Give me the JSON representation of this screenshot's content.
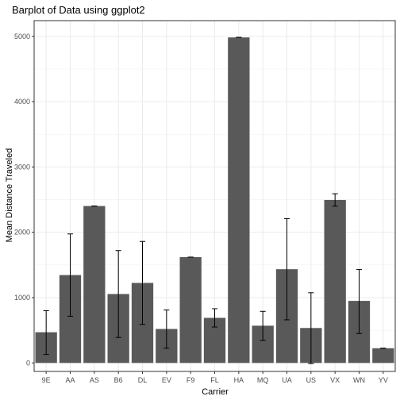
{
  "chart_data": {
    "type": "bar",
    "title": "Barplot of Data using ggplot2",
    "xlabel": "Carrier",
    "ylabel": "Mean Distance Traveled",
    "categories": [
      "9E",
      "AA",
      "AS",
      "B6",
      "DL",
      "EV",
      "F9",
      "FL",
      "HA",
      "MQ",
      "UA",
      "US",
      "VX",
      "WN",
      "YV"
    ],
    "values": [
      470,
      1345,
      2402,
      1055,
      1225,
      520,
      1620,
      690,
      4983,
      570,
      1435,
      535,
      2495,
      950,
      225
    ],
    "error_low": [
      130,
      715,
      2402,
      390,
      590,
      225,
      1620,
      550,
      4983,
      345,
      660,
      -10,
      2400,
      450,
      225
    ],
    "error_high": [
      800,
      1975,
      2402,
      1720,
      1860,
      810,
      1620,
      830,
      4983,
      790,
      2210,
      1075,
      2590,
      1430,
      225
    ],
    "ylim": [
      -130,
      5240
    ],
    "yticks": [
      0,
      1000,
      2000,
      3000,
      4000,
      5000
    ],
    "grid": true,
    "legend": "none",
    "colors": {
      "bar": "#595959",
      "panel_border": "#333333",
      "grid_major": "#ebebeb",
      "grid_minor": "#f2f2f2",
      "error_bar": "#000000"
    }
  }
}
